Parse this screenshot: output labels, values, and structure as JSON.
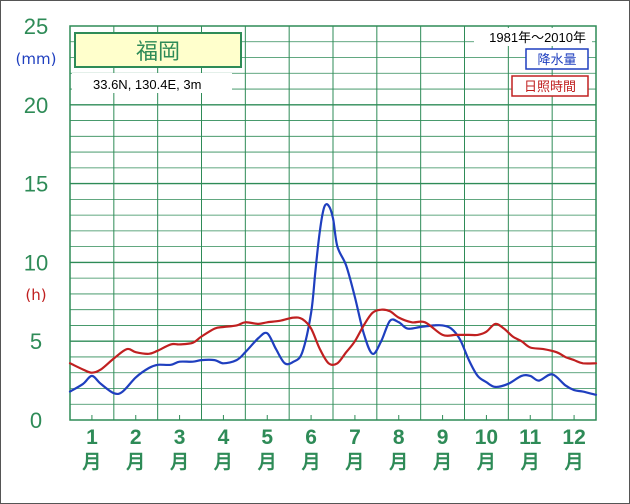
{
  "chart_data": {
    "type": "line",
    "station": "福岡",
    "coords": "33.6N,  130.4E,  3m",
    "period": "1981年〜2010年",
    "precip_unit": "(mm)",
    "sun_unit": "(h)",
    "y_ticks": [
      "0",
      "5",
      "10",
      "15",
      "20",
      "25"
    ],
    "ylim": [
      0,
      25
    ],
    "x_range": [
      0.5,
      12.5
    ],
    "months": [
      "1",
      "2",
      "3",
      "4",
      "5",
      "6",
      "7",
      "8",
      "9",
      "10",
      "11",
      "12"
    ],
    "month_suffix": "月",
    "grid": true,
    "legend_position": "top-right",
    "series": [
      {
        "name": "降水量",
        "color": "#1f3fbf",
        "x": [
          0.5,
          0.8,
          1.0,
          1.2,
          1.5,
          1.7,
          2.0,
          2.3,
          2.5,
          2.8,
          3.0,
          3.3,
          3.5,
          3.8,
          4.0,
          4.3,
          4.5,
          4.8,
          5.0,
          5.2,
          5.4,
          5.6,
          5.8,
          6.0,
          6.1,
          6.2,
          6.3,
          6.4,
          6.5,
          6.6,
          6.8,
          7.0,
          7.2,
          7.4,
          7.6,
          7.8,
          8.0,
          8.2,
          8.5,
          8.8,
          9.0,
          9.2,
          9.4,
          9.6,
          9.8,
          10.0,
          10.2,
          10.5,
          10.8,
          11.0,
          11.2,
          11.5,
          11.8,
          12.0,
          12.2,
          12.5
        ],
        "values": [
          1.8,
          2.3,
          2.8,
          2.3,
          1.7,
          1.8,
          2.7,
          3.3,
          3.5,
          3.5,
          3.7,
          3.7,
          3.8,
          3.8,
          3.6,
          3.8,
          4.3,
          5.2,
          5.5,
          4.5,
          3.6,
          3.7,
          4.3,
          6.8,
          9.5,
          12.0,
          13.5,
          13.6,
          12.8,
          11.0,
          9.8,
          7.8,
          5.5,
          4.2,
          5.0,
          6.3,
          6.2,
          5.8,
          5.9,
          6.0,
          6.0,
          5.8,
          5.1,
          3.8,
          2.8,
          2.4,
          2.1,
          2.3,
          2.8,
          2.8,
          2.5,
          2.9,
          2.2,
          1.9,
          1.8,
          1.6
        ]
      },
      {
        "name": "日照時間",
        "color": "#c02020",
        "x": [
          0.5,
          0.8,
          1.0,
          1.2,
          1.5,
          1.8,
          2.0,
          2.3,
          2.5,
          2.8,
          3.0,
          3.3,
          3.5,
          3.8,
          4.0,
          4.3,
          4.5,
          4.8,
          5.0,
          5.3,
          5.6,
          5.8,
          6.0,
          6.2,
          6.4,
          6.6,
          6.8,
          7.0,
          7.2,
          7.4,
          7.6,
          7.8,
          8.0,
          8.3,
          8.6,
          9.0,
          9.3,
          9.6,
          9.8,
          10.0,
          10.2,
          10.4,
          10.6,
          10.8,
          11.0,
          11.3,
          11.6,
          11.8,
          12.0,
          12.2,
          12.5
        ],
        "values": [
          3.6,
          3.2,
          3.0,
          3.2,
          3.9,
          4.5,
          4.3,
          4.2,
          4.4,
          4.8,
          4.8,
          4.9,
          5.3,
          5.8,
          5.9,
          6.0,
          6.2,
          6.1,
          6.2,
          6.3,
          6.5,
          6.4,
          5.8,
          4.5,
          3.6,
          3.6,
          4.3,
          5.0,
          6.0,
          6.8,
          7.0,
          6.9,
          6.5,
          6.2,
          6.2,
          5.4,
          5.4,
          5.4,
          5.4,
          5.6,
          6.1,
          5.8,
          5.3,
          5.0,
          4.6,
          4.5,
          4.3,
          4.0,
          3.8,
          3.6,
          3.6
        ]
      }
    ]
  }
}
